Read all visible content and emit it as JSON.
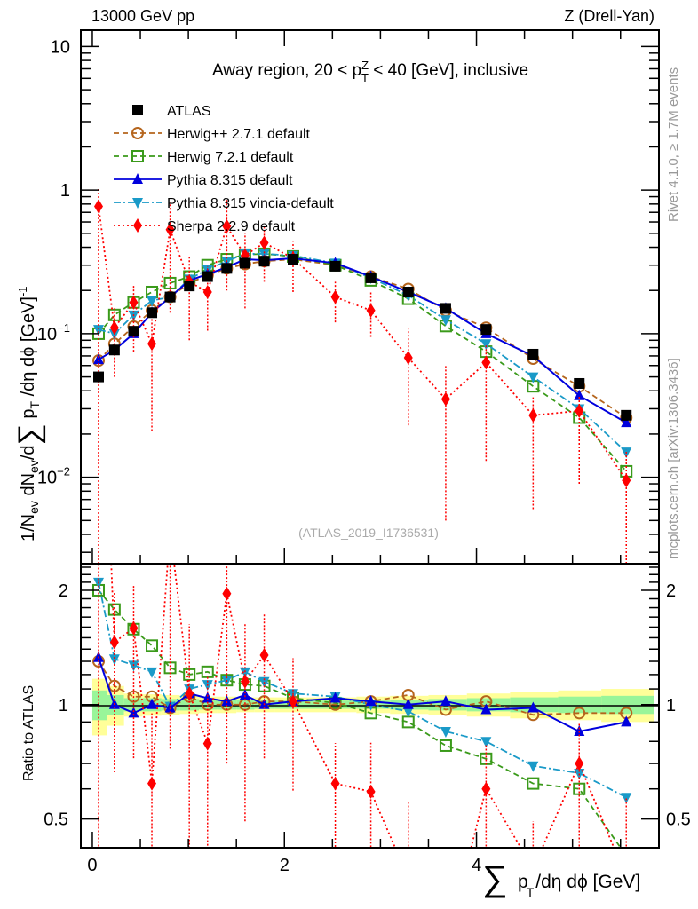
{
  "header": {
    "left_label": "13000 GeV pp",
    "right_label": "Z (Drell-Yan)"
  },
  "side_labels": {
    "rivet": "Rivet 4.1.0, ≥ 1.7M events",
    "mcplots": "mcplots.cern.ch [arXiv:1306.3436]"
  },
  "chart_data": [
    {
      "panel": "main",
      "type": "line",
      "title": "Away region, 20 < p_T^Z < 40 [GeV], inclusive",
      "analysis_id": "(ATLAS_2019_I1736531)",
      "xlabel": "∑ p_T /dη dϕ [GeV]",
      "ylabel": "1/N_ev dN_ev/d∑ p_T /dη dϕ  [GeV]^-1",
      "yscale": "log",
      "xlim": [
        -0.12,
        5.9
      ],
      "ylim": [
        0.0025,
        13
      ],
      "xticks": [
        0,
        2,
        4
      ],
      "yticks": [
        {
          "value": 10,
          "label": "10"
        },
        {
          "value": 1,
          "label": "1"
        },
        {
          "value": 0.1,
          "label": "10^-1"
        },
        {
          "value": 0.01,
          "label": "10^-2"
        }
      ],
      "legend_position": "top-left",
      "x": [
        0.065,
        0.23,
        0.43,
        0.62,
        0.81,
        1.01,
        1.2,
        1.4,
        1.59,
        1.79,
        2.09,
        2.53,
        2.9,
        3.29,
        3.68,
        4.1,
        4.59,
        5.07,
        5.56
      ],
      "series": [
        {
          "name": "ATLAS",
          "style": "data",
          "color": "#000000",
          "marker": "square-filled",
          "values": [
            0.05,
            0.077,
            0.104,
            0.14,
            0.18,
            0.215,
            0.25,
            0.285,
            0.31,
            0.32,
            0.33,
            0.295,
            0.245,
            0.195,
            0.15,
            0.107,
            0.072,
            0.045,
            0.027
          ]
        },
        {
          "name": "Herwig++ 2.7.1 default",
          "style": "dashed",
          "color": "#b5651d",
          "marker": "circle-open",
          "values": [
            0.065,
            0.085,
            0.112,
            0.145,
            0.18,
            0.225,
            0.255,
            0.285,
            0.305,
            0.32,
            0.33,
            0.3,
            0.25,
            0.205,
            0.145,
            0.11,
            0.067,
            0.043,
            0.026
          ]
        },
        {
          "name": "Herwig 7.2.1 default",
          "style": "dashed",
          "color": "#3a9a1a",
          "marker": "square-open",
          "values": [
            0.1,
            0.135,
            0.165,
            0.195,
            0.225,
            0.25,
            0.3,
            0.33,
            0.355,
            0.36,
            0.345,
            0.3,
            0.235,
            0.175,
            0.113,
            0.075,
            0.043,
            0.026,
            0.011
          ]
        },
        {
          "name": "Pythia 8.315 default",
          "style": "solid",
          "color": "#0000dd",
          "marker": "triangle-up",
          "values": [
            0.066,
            0.077,
            0.1,
            0.14,
            0.18,
            0.235,
            0.26,
            0.29,
            0.33,
            0.325,
            0.335,
            0.31,
            0.25,
            0.195,
            0.15,
            0.1,
            0.07,
            0.037,
            0.024
          ]
        },
        {
          "name": "Pythia 8.315 vincia-default",
          "style": "dashdot",
          "color": "#1a9ac8",
          "marker": "triangle-down",
          "values": [
            0.107,
            0.1,
            0.135,
            0.17,
            0.18,
            0.24,
            0.28,
            0.32,
            0.36,
            0.36,
            0.35,
            0.31,
            0.245,
            0.185,
            0.125,
            0.085,
            0.05,
            0.03,
            0.015
          ]
        },
        {
          "name": "Sherpa 2.2.9 default",
          "style": "dotted",
          "color": "#ff0000",
          "marker": "diamond",
          "values": [
            0.77,
            0.11,
            0.165,
            0.085,
            0.53,
            0.23,
            0.195,
            0.56,
            0.35,
            0.43,
            0.335,
            0.18,
            0.145,
            0.068,
            0.035,
            0.063,
            0.027,
            0.029,
            0.0095
          ],
          "err_lo": [
            0.77,
            0.06,
            0.09,
            0.064,
            0.39,
            0.14,
            0.09,
            0.36,
            0.2,
            0.2,
            0.14,
            0.06,
            0.05,
            0.045,
            0.03,
            0.05,
            0.021,
            0.02,
            0.0095
          ],
          "err_hi": [
            0.26,
            0.04,
            0.05,
            0.045,
            0.3,
            0.12,
            0.1,
            0.3,
            0.15,
            0.12,
            0.1,
            0.05,
            0.05,
            0.04,
            0.025,
            0.02,
            0.009,
            0.008,
            0.006
          ]
        }
      ]
    },
    {
      "panel": "ratio",
      "type": "line",
      "ylabel": "Ratio to ATLAS",
      "xlabel": "∑ p_T /dη dϕ [GeV]",
      "yscale": "log",
      "xlim": [
        -0.12,
        5.9
      ],
      "ylim": [
        0.42,
        2.35
      ],
      "yticks": [
        {
          "value": 2,
          "label": "2"
        },
        {
          "value": 1,
          "label": "1"
        },
        {
          "value": 0.5,
          "label": "0.5"
        }
      ],
      "xticks": [
        0,
        2,
        4
      ],
      "x": [
        0.065,
        0.23,
        0.43,
        0.62,
        0.81,
        1.01,
        1.2,
        1.4,
        1.59,
        1.79,
        2.09,
        2.53,
        2.9,
        3.29,
        3.68,
        4.1,
        4.59,
        5.07,
        5.56
      ],
      "band_edges": [
        0,
        0.15,
        0.33,
        0.52,
        0.72,
        0.91,
        1.11,
        1.3,
        1.5,
        1.69,
        1.9,
        2.3,
        2.75,
        3.1,
        3.5,
        3.9,
        4.35,
        4.85,
        5.3,
        5.85
      ],
      "band_green": [
        0.09,
        0.06,
        0.04,
        0.04,
        0.035,
        0.035,
        0.03,
        0.03,
        0.03,
        0.025,
        0.025,
        0.025,
        0.025,
        0.03,
        0.035,
        0.04,
        0.045,
        0.05,
        0.055
      ],
      "band_yellow": [
        0.17,
        0.12,
        0.07,
        0.065,
        0.06,
        0.055,
        0.05,
        0.05,
        0.045,
        0.045,
        0.045,
        0.045,
        0.05,
        0.055,
        0.06,
        0.07,
        0.08,
        0.09,
        0.1
      ],
      "series": [
        {
          "name": "Herwig++ 2.7.1 default",
          "values": [
            1.3,
            1.12,
            1.05,
            1.05,
            0.98,
            1.05,
            1.0,
            1.0,
            1.0,
            1.02,
            1.02,
            1.0,
            1.02,
            1.06,
            0.97,
            1.02,
            0.94,
            0.95,
            0.95
          ]
        },
        {
          "name": "Herwig 7.2.1 default",
          "values": [
            2.0,
            1.78,
            1.58,
            1.43,
            1.25,
            1.2,
            1.22,
            1.16,
            1.13,
            1.12,
            1.04,
            1.01,
            0.95,
            0.9,
            0.78,
            0.72,
            0.62,
            0.6,
            0.4
          ]
        },
        {
          "name": "Pythia 8.315 default",
          "values": [
            1.33,
            1.0,
            0.95,
            1.0,
            0.98,
            1.07,
            1.04,
            1.02,
            1.06,
            1.0,
            1.02,
            1.04,
            1.02,
            1.0,
            1.02,
            0.97,
            0.98,
            0.85,
            0.9
          ]
        },
        {
          "name": "Pythia 8.315 vincia-default",
          "values": [
            2.1,
            1.32,
            1.27,
            1.22,
            0.99,
            1.1,
            1.13,
            1.16,
            1.22,
            1.15,
            1.07,
            1.05,
            1.0,
            0.96,
            0.85,
            0.8,
            0.69,
            0.66,
            0.57
          ]
        },
        {
          "name": "Sherpa 2.2.9 default",
          "values": [
            15.4,
            1.46,
            1.59,
            0.62,
            2.9,
            1.07,
            0.79,
            1.96,
            1.15,
            1.35,
            1.02,
            0.62,
            0.59,
            0.35,
            0.23,
            0.6,
            0.37,
            0.7,
            0.35
          ]
        }
      ]
    }
  ]
}
